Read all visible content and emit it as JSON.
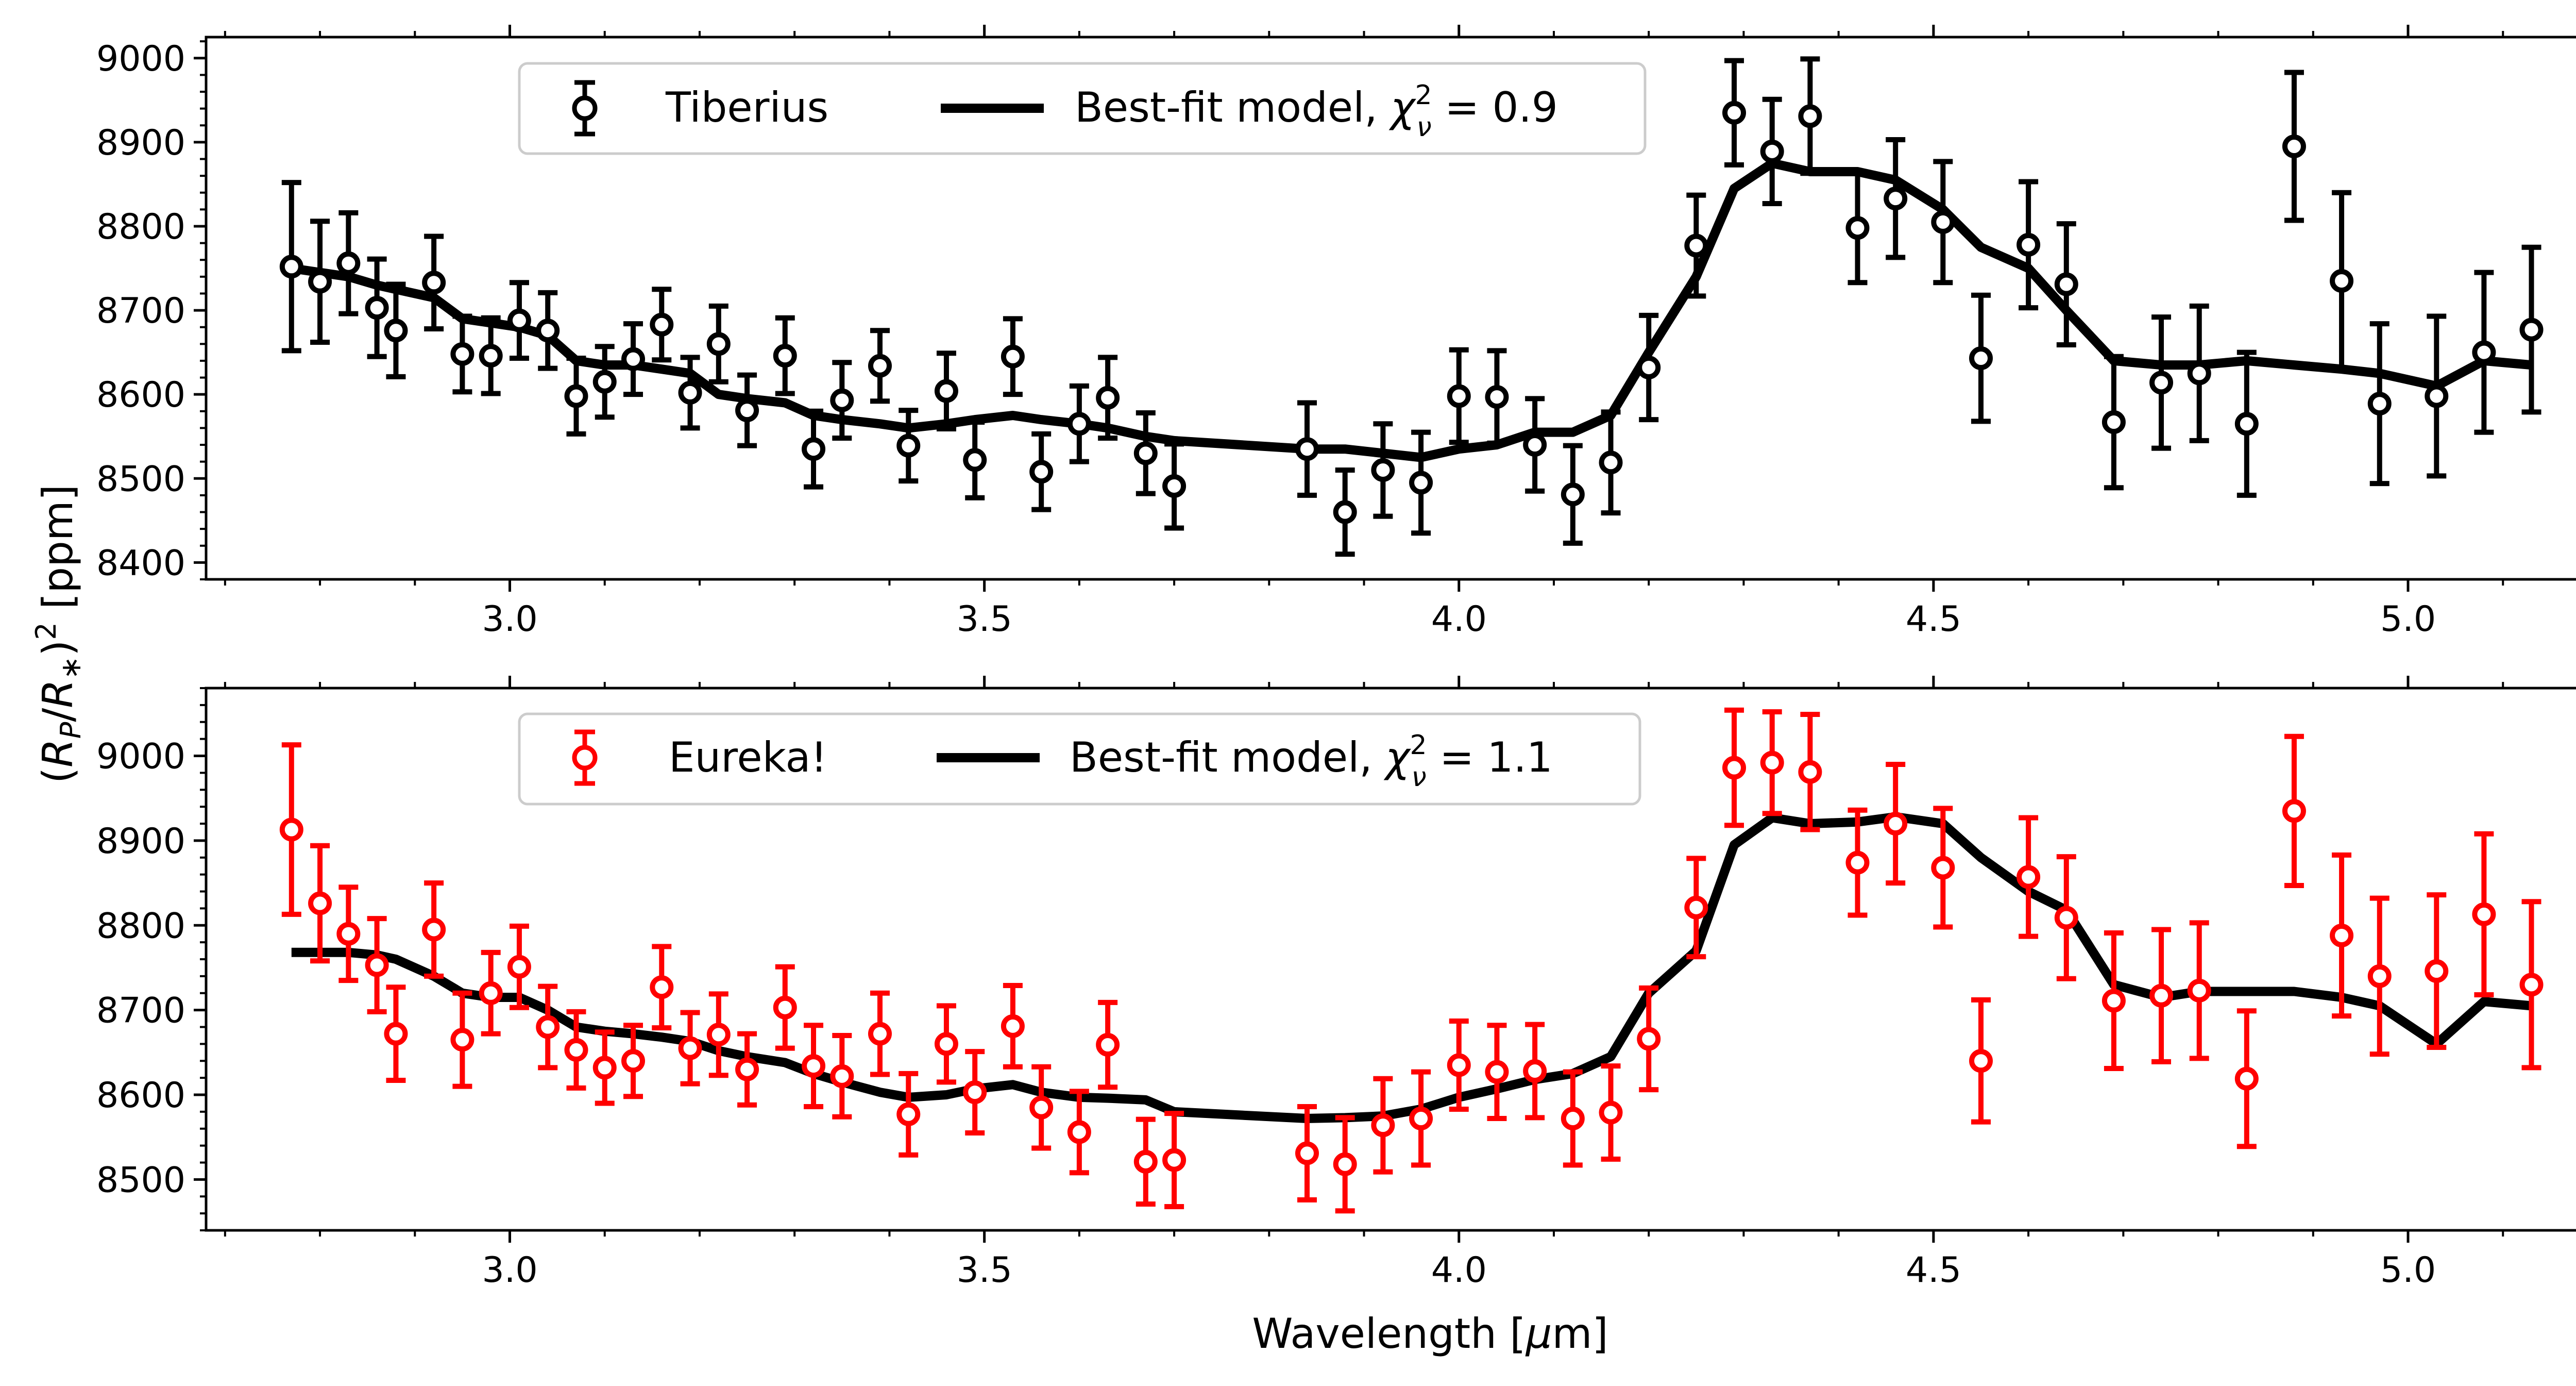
{
  "chart_data": [
    {
      "type": "scatter",
      "panel": "top",
      "xlim": [
        2.68,
        5.26
      ],
      "ylim": [
        8380,
        9025
      ],
      "xticks": [
        3.0,
        3.5,
        4.0,
        4.5,
        5.0
      ],
      "xtick_labels": [
        "3.0",
        "3.5",
        "4.0",
        "4.5",
        "5.0"
      ],
      "yticks": [
        8400,
        8500,
        8600,
        8700,
        8800,
        8900,
        9000
      ],
      "ytick_labels": [
        "8400",
        "8500",
        "8600",
        "8700",
        "8800",
        "8900",
        "9000"
      ],
      "legend_position": "top-left",
      "point_color": "#000000",
      "series": [
        {
          "name": "Tiberius",
          "kind": "errorbar",
          "x": [
            2.77,
            2.8,
            2.83,
            2.86,
            2.88,
            2.92,
            2.95,
            2.98,
            3.01,
            3.04,
            3.07,
            3.1,
            3.13,
            3.16,
            3.19,
            3.22,
            3.25,
            3.29,
            3.32,
            3.35,
            3.39,
            3.42,
            3.46,
            3.49,
            3.53,
            3.56,
            3.6,
            3.63,
            3.67,
            3.7,
            3.84,
            3.88,
            3.92,
            3.96,
            4.0,
            4.04,
            4.08,
            4.12,
            4.16,
            4.2,
            4.25,
            4.29,
            4.33,
            4.37,
            4.42,
            4.46,
            4.51,
            4.55,
            4.6,
            4.64,
            4.69,
            4.74,
            4.78,
            4.83,
            4.88,
            4.93,
            4.97,
            5.03,
            5.08,
            5.13
          ],
          "y": [
            8752,
            8734,
            8756,
            8703,
            8676,
            8733,
            8648,
            8646,
            8688,
            8676,
            8598,
            8615,
            8642,
            8683,
            8602,
            8660,
            8581,
            8646,
            8535,
            8593,
            8634,
            8539,
            8604,
            8522,
            8645,
            8508,
            8565,
            8596,
            8530,
            8491,
            8535,
            8460,
            8510,
            8495,
            8598,
            8597,
            8540,
            8481,
            8519,
            8632,
            8777,
            8935,
            8889,
            8931,
            8798,
            8833,
            8805,
            8643,
            8778,
            8731,
            8567,
            8614,
            8625,
            8565,
            8895,
            8735,
            8589,
            8598,
            8650,
            8677
          ],
          "err": [
            100,
            72,
            60,
            58,
            55,
            55,
            45,
            45,
            45,
            45,
            45,
            42,
            42,
            42,
            42,
            45,
            42,
            45,
            45,
            45,
            42,
            42,
            45,
            45,
            45,
            45,
            45,
            48,
            48,
            50,
            55,
            50,
            55,
            60,
            55,
            55,
            55,
            58,
            60,
            62,
            60,
            62,
            62,
            68,
            65,
            70,
            72,
            75,
            75,
            72,
            78,
            78,
            80,
            85,
            88,
            105,
            95,
            95,
            95,
            98
          ]
        },
        {
          "name": "Best-fit model, χ²_ν = 0.9",
          "kind": "line",
          "x": [
            2.77,
            2.8,
            2.83,
            2.86,
            2.88,
            2.92,
            2.95,
            2.98,
            3.01,
            3.04,
            3.07,
            3.1,
            3.13,
            3.16,
            3.19,
            3.22,
            3.25,
            3.29,
            3.32,
            3.35,
            3.39,
            3.42,
            3.46,
            3.49,
            3.53,
            3.56,
            3.6,
            3.63,
            3.67,
            3.7,
            3.84,
            3.88,
            3.92,
            3.96,
            4.0,
            4.04,
            4.08,
            4.12,
            4.16,
            4.2,
            4.25,
            4.29,
            4.33,
            4.37,
            4.42,
            4.46,
            4.51,
            4.55,
            4.6,
            4.64,
            4.69,
            4.74,
            4.78,
            4.83,
            4.88,
            4.93,
            4.97,
            5.03,
            5.08,
            5.13
          ],
          "y": [
            8750,
            8745,
            8740,
            8730,
            8725,
            8715,
            8690,
            8685,
            8680,
            8670,
            8640,
            8635,
            8635,
            8630,
            8625,
            8600,
            8595,
            8590,
            8575,
            8570,
            8565,
            8560,
            8565,
            8570,
            8575,
            8570,
            8565,
            8560,
            8550,
            8545,
            8535,
            8535,
            8530,
            8525,
            8535,
            8540,
            8555,
            8555,
            8575,
            8650,
            8740,
            8845,
            8875,
            8865,
            8865,
            8855,
            8820,
            8775,
            8750,
            8700,
            8640,
            8635,
            8635,
            8640,
            8635,
            8630,
            8625,
            8610,
            8640,
            8635
          ]
        }
      ]
    },
    {
      "type": "scatter",
      "panel": "bottom",
      "xlabel": "Wavelength [μm]",
      "xlim": [
        2.68,
        5.26
      ],
      "ylim": [
        8440,
        9080
      ],
      "xticks": [
        3.0,
        3.5,
        4.0,
        4.5,
        5.0
      ],
      "xtick_labels": [
        "3.0",
        "3.5",
        "4.0",
        "4.5",
        "5.0"
      ],
      "yticks": [
        8500,
        8600,
        8700,
        8800,
        8900,
        9000
      ],
      "ytick_labels": [
        "8500",
        "8600",
        "8700",
        "8800",
        "8900",
        "9000"
      ],
      "legend_position": "top-left",
      "point_color": "#ff0000",
      "series": [
        {
          "name": "Eureka!",
          "kind": "errorbar",
          "x": [
            2.77,
            2.8,
            2.83,
            2.86,
            2.88,
            2.92,
            2.95,
            2.98,
            3.01,
            3.04,
            3.07,
            3.1,
            3.13,
            3.16,
            3.19,
            3.22,
            3.25,
            3.29,
            3.32,
            3.35,
            3.39,
            3.42,
            3.46,
            3.49,
            3.53,
            3.56,
            3.6,
            3.63,
            3.67,
            3.7,
            3.84,
            3.88,
            3.92,
            3.96,
            4.0,
            4.04,
            4.08,
            4.12,
            4.16,
            4.2,
            4.25,
            4.29,
            4.33,
            4.37,
            4.42,
            4.46,
            4.51,
            4.55,
            4.6,
            4.64,
            4.69,
            4.74,
            4.78,
            4.83,
            4.88,
            4.93,
            4.97,
            5.03,
            5.08,
            5.13
          ],
          "y": [
            8913,
            8826,
            8790,
            8753,
            8672,
            8795,
            8665,
            8720,
            8751,
            8680,
            8653,
            8632,
            8640,
            8727,
            8655,
            8671,
            8630,
            8703,
            8634,
            8622,
            8672,
            8577,
            8660,
            8603,
            8681,
            8585,
            8556,
            8659,
            8521,
            8523,
            8531,
            8518,
            8564,
            8572,
            8635,
            8627,
            8628,
            8572,
            8579,
            8666,
            8821,
            8986,
            8992,
            8981,
            8874,
            8920,
            8868,
            8640,
            8857,
            8809,
            8711,
            8717,
            8723,
            8619,
            8935,
            8788,
            8740,
            8746,
            8813,
            8730
          ],
          "err": [
            100,
            68,
            55,
            55,
            55,
            55,
            55,
            48,
            48,
            48,
            45,
            42,
            42,
            48,
            42,
            48,
            42,
            48,
            48,
            48,
            48,
            48,
            45,
            48,
            48,
            48,
            48,
            50,
            50,
            55,
            55,
            55,
            55,
            55,
            52,
            55,
            55,
            55,
            55,
            60,
            58,
            68,
            60,
            68,
            62,
            70,
            70,
            72,
            70,
            72,
            80,
            78,
            80,
            80,
            88,
            95,
            92,
            90,
            95,
            98
          ]
        },
        {
          "name": "Best-fit model, χ²_ν = 1.1",
          "kind": "line",
          "x": [
            2.77,
            2.8,
            2.83,
            2.86,
            2.88,
            2.92,
            2.95,
            2.98,
            3.01,
            3.04,
            3.07,
            3.1,
            3.13,
            3.16,
            3.19,
            3.22,
            3.25,
            3.29,
            3.32,
            3.35,
            3.39,
            3.42,
            3.46,
            3.49,
            3.53,
            3.56,
            3.6,
            3.63,
            3.67,
            3.7,
            3.84,
            3.88,
            3.92,
            3.96,
            4.0,
            4.04,
            4.08,
            4.12,
            4.16,
            4.2,
            4.25,
            4.29,
            4.33,
            4.37,
            4.42,
            4.46,
            4.51,
            4.55,
            4.6,
            4.64,
            4.69,
            4.74,
            4.78,
            4.83,
            4.88,
            4.93,
            4.97,
            5.03,
            5.08,
            5.13
          ],
          "y": [
            8768,
            8768,
            8768,
            8765,
            8760,
            8740,
            8720,
            8715,
            8715,
            8700,
            8680,
            8675,
            8672,
            8668,
            8663,
            8652,
            8645,
            8638,
            8625,
            8615,
            8603,
            8597,
            8600,
            8607,
            8612,
            8603,
            8597,
            8596,
            8594,
            8580,
            8572,
            8573,
            8575,
            8583,
            8597,
            8607,
            8618,
            8625,
            8645,
            8720,
            8770,
            8895,
            8927,
            8920,
            8922,
            8928,
            8920,
            8880,
            8840,
            8818,
            8730,
            8715,
            8722,
            8722,
            8722,
            8715,
            8705,
            8660,
            8710,
            8705
          ]
        }
      ]
    }
  ],
  "shared_ylabel": "(R_P/R_*)² [ppm]",
  "legends": [
    {
      "data_label": "Tiberius",
      "model_label_prefix": "Best-fit model, ",
      "chi_symbol": "χ",
      "chi_sup": "2",
      "chi_sub": "ν",
      "chi_value": " = 0.9"
    },
    {
      "data_label": "Eureka!",
      "model_label_prefix": "Best-fit model, ",
      "chi_symbol": "χ",
      "chi_sup": "2",
      "chi_sub": "ν",
      "chi_value": " = 1.1"
    }
  ],
  "ylabel_parts": {
    "open": "(",
    "r1": "R",
    "sub1": "P",
    "slash": "/",
    "r2": "R",
    "sub2": "∗",
    "close": ")",
    "sup": "2",
    "unit": " [ppm]"
  },
  "xlabel_parts": {
    "text": "Wavelength [",
    "mu": "μ",
    "end": "m]"
  }
}
